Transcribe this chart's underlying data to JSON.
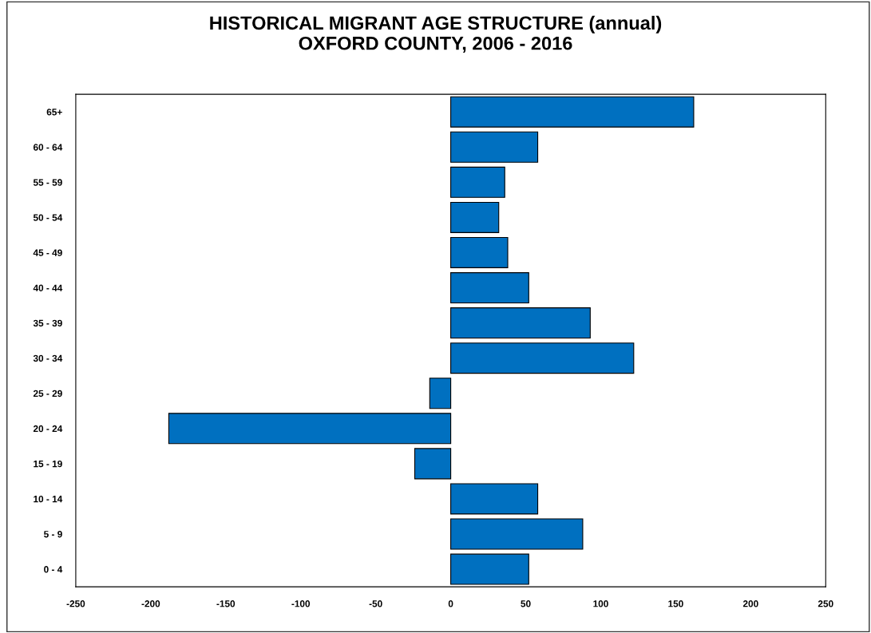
{
  "chart_data": {
    "type": "bar",
    "orientation": "horizontal",
    "title": "HISTORICAL MIGRANT AGE STRUCTURE (annual)\nOXFORD COUNTY, 2006 - 2016",
    "categories": [
      "65+",
      "60 - 64",
      "55 - 59",
      "50 - 54",
      "45 - 49",
      "40 - 44",
      "35 - 39",
      "30 - 34",
      "25 - 29",
      "20 - 24",
      "15 - 19",
      "10 - 14",
      "5 - 9",
      "0 - 4"
    ],
    "values": [
      162,
      58,
      36,
      32,
      38,
      52,
      93,
      122,
      -14,
      -188,
      -24,
      58,
      88,
      52
    ],
    "color": "#0070c0",
    "xlim": [
      -250,
      250
    ],
    "xticks": [
      -250,
      -200,
      -150,
      -100,
      -50,
      0,
      50,
      100,
      150,
      200,
      250
    ],
    "grid": false,
    "legend": false
  }
}
